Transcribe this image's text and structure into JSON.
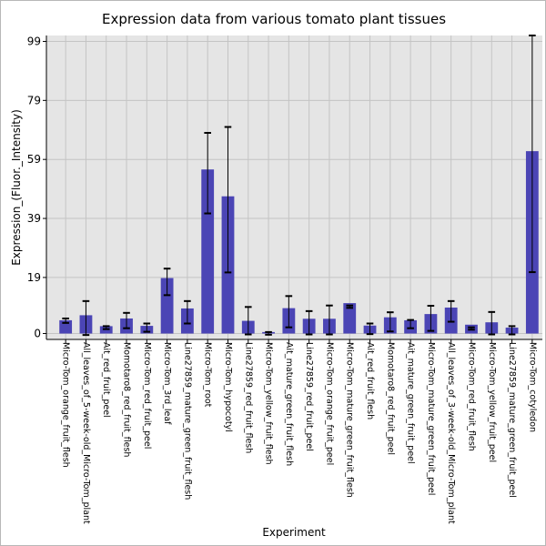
{
  "chart_data": {
    "type": "bar",
    "title": "Expression data from various tomato plant tissues",
    "xlabel": "Experiment",
    "ylabel": "Expression_(Fluor._Intensity)",
    "yticks": [
      0,
      19,
      39,
      59,
      79,
      99
    ],
    "ylim": [
      -2,
      101
    ],
    "grid": true,
    "bar_color": "#4b45b5",
    "plot_background": "#e5e5e5",
    "categories": [
      "Micro-Tom_orange_fruit_flesh",
      "All_leaves_of_5-week-old_Micro-Tom_plant",
      "Ait_red_fruit_peel",
      "Momotaro8_red_fruit_flesh",
      "Micro-Tom_red_fruit_peel",
      "Micro-Tom_3rd_leaf",
      "Line27859_mature_green_fruit_flesh",
      "Micro-Tom_root",
      "Micro-Tom_hypocotyl",
      "Line27859_red_fruit_flesh",
      "Micro-Tom_yellow_fruit_flesh",
      "Ait_mature_green_fruit_flesh",
      "Line27859_red_fruit_peel",
      "Micro-Tom_orange_fruit_peel",
      "Micro-Tom_mature_green_fruit_flesh",
      "Ait_red_fruit_flesh",
      "Momotaro8_red_fruit_peel",
      "Ait_mature_green_fruit_peel",
      "Micro-Tom_mature_green_fruit_peel",
      "All_leaves_of_3-week-old_Micro-Tom_plant",
      "Micro-Tom_red_fruit_flesh",
      "Micro-Tom_yellow_fruit_peel",
      "Line27859_mature_green_fruit_peel",
      "Micro-Tom_cotyledon"
    ],
    "values": [
      4.5,
      6.2,
      2.5,
      5.1,
      2.6,
      18.8,
      8.5,
      55.6,
      46.5,
      4.3,
      0.5,
      8.6,
      5.0,
      5.0,
      10.3,
      2.7,
      5.5,
      4.5,
      6.6,
      8.8,
      3.0,
      3.8,
      2.0,
      61.8
    ],
    "errors": [
      [
        3.6,
        5.1
      ],
      [
        -0.5,
        11.0
      ],
      [
        1.5,
        2.5
      ],
      [
        1.8,
        7.0
      ],
      [
        0.6,
        3.4
      ],
      [
        13.0,
        22.0
      ],
      [
        3.4,
        11.0
      ],
      [
        40.7,
        68.0
      ],
      [
        20.7,
        70.0
      ],
      [
        -0.3,
        9.0
      ],
      [
        -0.4,
        0.5
      ],
      [
        2.1,
        12.7
      ],
      [
        -0.3,
        7.6
      ],
      [
        -0.3,
        9.5
      ],
      [
        8.7,
        9.5
      ],
      [
        -0.2,
        3.4
      ],
      [
        0.7,
        7.2
      ],
      [
        1.8,
        4.6
      ],
      [
        0.9,
        9.4
      ],
      [
        4.0,
        11.0
      ],
      [
        1.3,
        2.1
      ],
      [
        -0.3,
        7.3
      ],
      [
        -0.3,
        2.5
      ],
      [
        20.8,
        101.0
      ]
    ]
  }
}
